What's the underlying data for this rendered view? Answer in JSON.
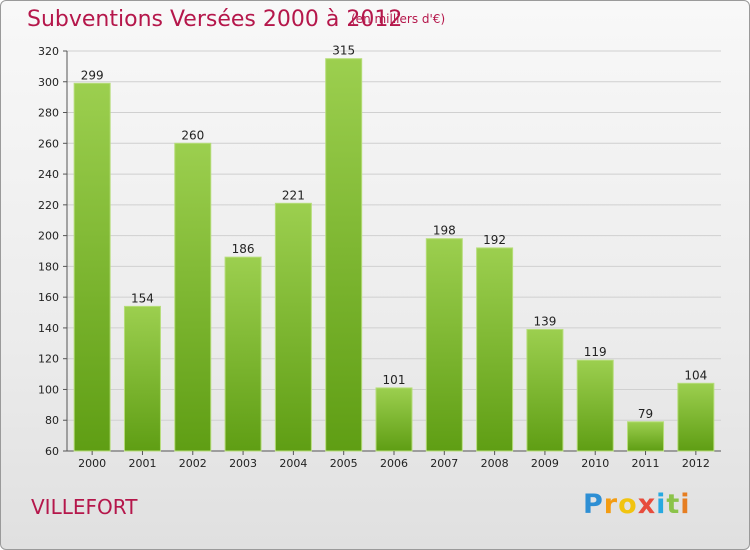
{
  "chart_data": {
    "type": "bar",
    "title": "Subventions Versées 2000 à 2012",
    "subtitle": "(en milliers d'€)",
    "location_label": "VILLEFORT",
    "categories": [
      "2000",
      "2001",
      "2002",
      "2003",
      "2004",
      "2005",
      "2006",
      "2007",
      "2008",
      "2009",
      "2010",
      "2011",
      "2012"
    ],
    "values": [
      299,
      154,
      260,
      186,
      221,
      315,
      101,
      198,
      192,
      139,
      119,
      79,
      104
    ],
    "ylim": [
      60,
      320
    ],
    "yticks": [
      60,
      80,
      100,
      120,
      140,
      160,
      180,
      200,
      220,
      240,
      260,
      280,
      300,
      320
    ],
    "grid": true,
    "bar_color_top": "#9ccf4f",
    "bar_color_bottom": "#5f9e14"
  },
  "branding": {
    "logo_text": "Proxiti"
  }
}
